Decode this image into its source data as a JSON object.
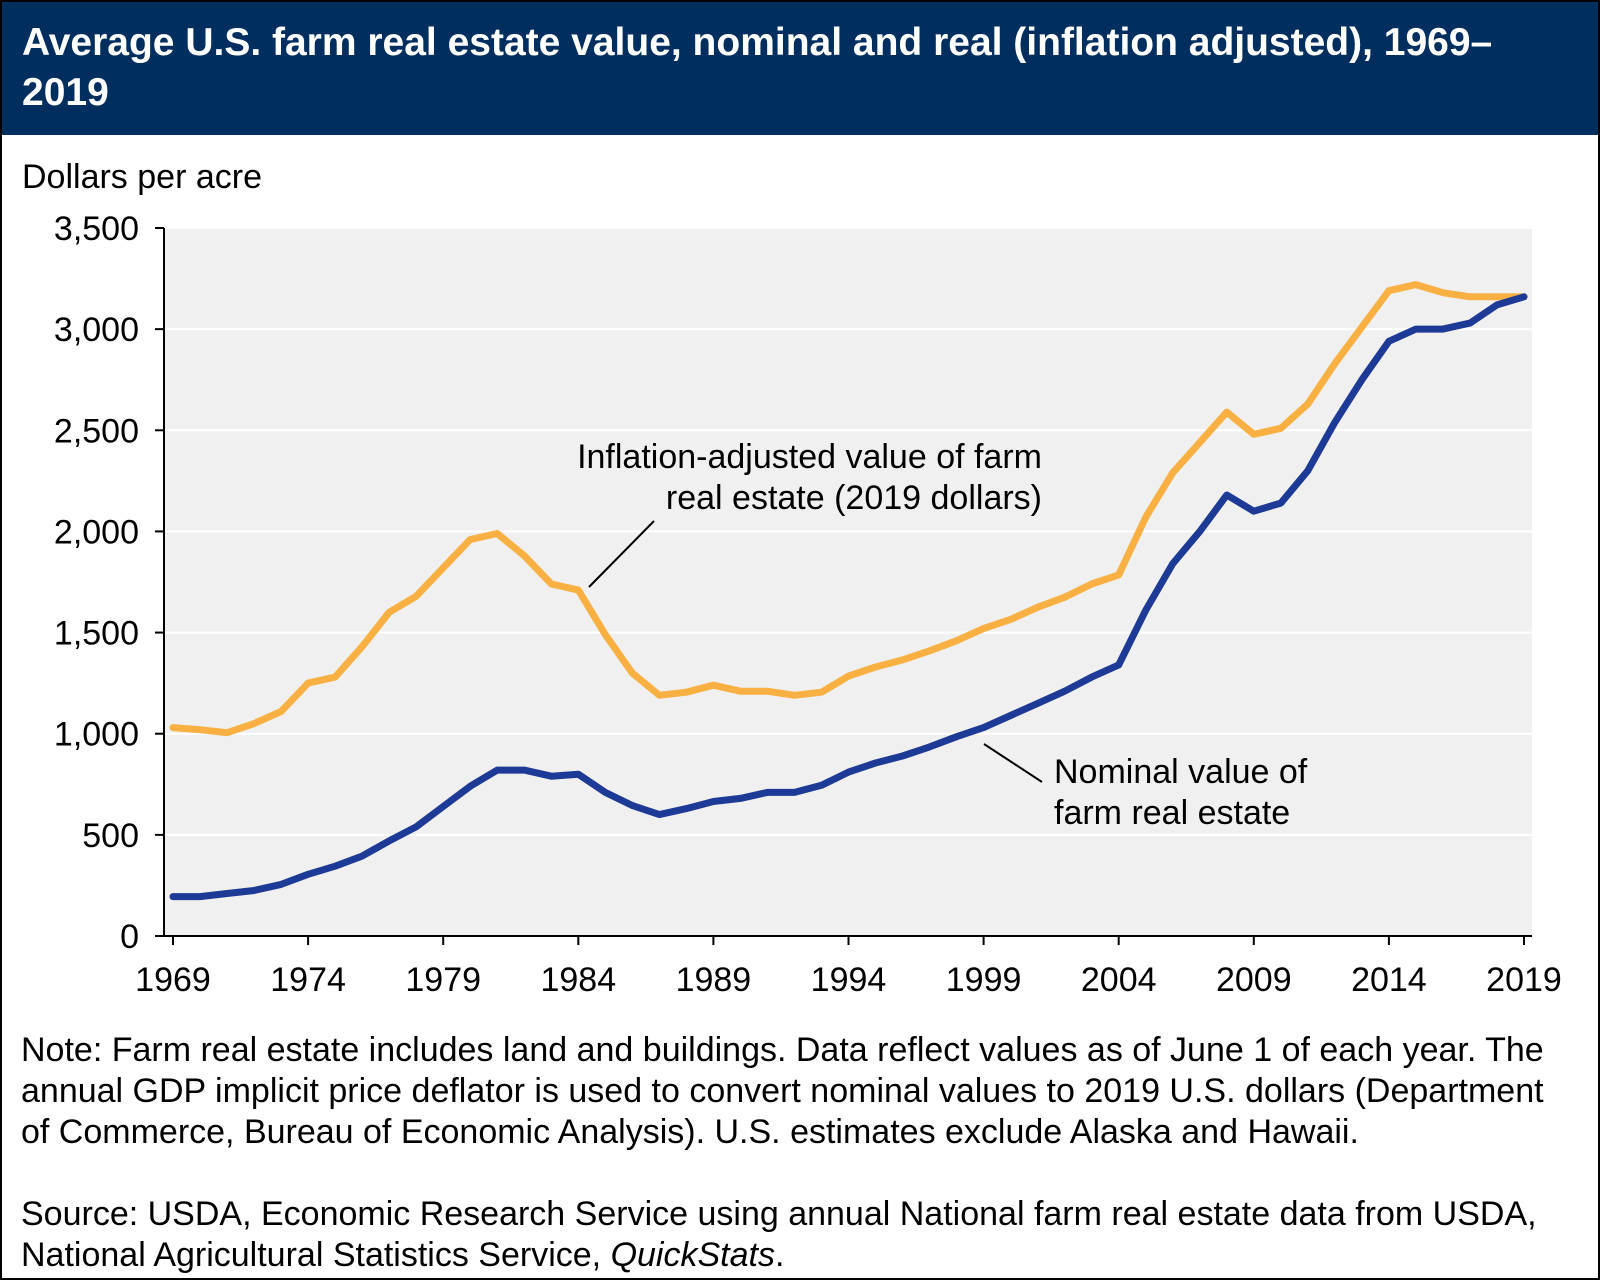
{
  "title": "Average U.S. farm real estate value, nominal and real (inflation adjusted), 1969–2019",
  "colors": {
    "header_bg": "#002f5f",
    "plot_bg": "#f0f0f0",
    "real": "#f9b042",
    "nominal": "#1d3b96"
  },
  "note": "Note: Farm real estate includes land and buildings. Data reflect values as of June 1 of each year. The annual GDP implicit price deflator is used to convert nominal values to 2019 U.S. dollars (Department of Commerce, Bureau of Economic Analysis). U.S. estimates exclude Alaska and Hawaii.",
  "source": {
    "prefix": "Source: USDA, Economic Research Service using annual National farm real estate data from USDA, National Agricultural Statistics Service, ",
    "italic": "QuickStats",
    "suffix": "."
  },
  "chart_data": {
    "type": "line",
    "ylabel": "Dollars per acre",
    "xlim": [
      1969,
      2019
    ],
    "ylim": [
      0,
      3500
    ],
    "yticks": [
      0,
      500,
      1000,
      1500,
      2000,
      2500,
      3000,
      3500
    ],
    "ytick_labels": [
      "0",
      "500",
      "1,000",
      "1,500",
      "2,000",
      "2,500",
      "3,000",
      "3,500"
    ],
    "xticks": [
      1969,
      1974,
      1979,
      1984,
      1989,
      1994,
      1999,
      2004,
      2009,
      2014,
      2019
    ],
    "xtick_labels": [
      "1969",
      "1974",
      "1979",
      "1984",
      "1989",
      "1994",
      "1999",
      "2004",
      "2009",
      "2014",
      "2019"
    ],
    "grid": "horizontal",
    "x": [
      1969,
      1970,
      1971,
      1972,
      1973,
      1974,
      1975,
      1976,
      1977,
      1978,
      1979,
      1980,
      1981,
      1982,
      1983,
      1984,
      1985,
      1986,
      1987,
      1988,
      1989,
      1990,
      1991,
      1992,
      1993,
      1994,
      1995,
      1996,
      1997,
      1998,
      1999,
      2000,
      2001,
      2002,
      2003,
      2004,
      2005,
      2006,
      2007,
      2008,
      2009,
      2010,
      2011,
      2012,
      2013,
      2014,
      2015,
      2016,
      2017,
      2018,
      2019
    ],
    "series": [
      {
        "key": "real",
        "annotation": [
          "Inflation-adjusted value of farm",
          "real estate (2019 dollars)"
        ],
        "values": [
          1030,
          1020,
          1005,
          1050,
          1110,
          1250,
          1280,
          1430,
          1600,
          1680,
          1820,
          1960,
          1990,
          1880,
          1740,
          1710,
          1490,
          1300,
          1190,
          1205,
          1240,
          1210,
          1210,
          1190,
          1205,
          1285,
          1330,
          1365,
          1410,
          1460,
          1520,
          1565,
          1625,
          1675,
          1740,
          1785,
          2070,
          2290,
          2440,
          2590,
          2480,
          2510,
          2630,
          2830,
          3010,
          3190,
          3220,
          3180,
          3160,
          3160,
          3160
        ]
      },
      {
        "key": "nominal",
        "annotation": [
          "Nominal value of",
          "farm real estate"
        ],
        "values": [
          195,
          195,
          210,
          225,
          255,
          305,
          345,
          395,
          470,
          540,
          640,
          740,
          820,
          820,
          790,
          800,
          710,
          645,
          600,
          630,
          665,
          680,
          710,
          710,
          745,
          810,
          855,
          890,
          935,
          985,
          1030,
          1090,
          1150,
          1210,
          1280,
          1340,
          1610,
          1840,
          2000,
          2180,
          2100,
          2140,
          2300,
          2540,
          2750,
          2940,
          3000,
          3000,
          3030,
          3120,
          3160
        ]
      }
    ]
  }
}
